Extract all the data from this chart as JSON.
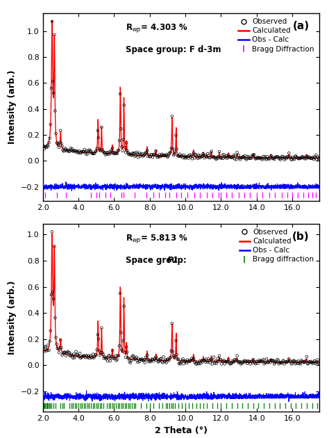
{
  "panel_a": {
    "rwp": "R",
    "rwp_sub": "wp",
    "rwp_val": "= 4.303 %",
    "space_group": "Space group: F d-3m",
    "space_group_italic": false,
    "label": "(a)",
    "bragg_color": "#FF00FF",
    "bragg_label": "Bragg Diffraction",
    "bragg_positions": [
      2.15,
      2.8,
      3.3,
      4.7,
      5.0,
      5.15,
      5.5,
      5.8,
      6.4,
      6.55,
      7.15,
      7.8,
      8.2,
      8.5,
      8.85,
      9.1,
      9.5,
      9.75,
      10.1,
      10.5,
      10.8,
      11.2,
      11.5,
      11.85,
      12.0,
      12.3,
      12.6,
      13.0,
      13.3,
      13.6,
      14.0,
      14.3,
      14.7,
      15.0,
      15.4,
      15.7,
      16.0,
      16.3,
      16.6,
      16.9,
      17.1,
      17.3
    ]
  },
  "panel_b": {
    "rwp": "R",
    "rwp_sub": "wp",
    "rwp_val": "= 5.813 %",
    "space_group": "Space group: ",
    "space_group_italic": "P1",
    "label": "(b)",
    "bragg_color": "#008000",
    "bragg_label": "Bragg diffraction",
    "bragg_positions": [
      2.05,
      2.1,
      2.15,
      2.2,
      2.25,
      2.3,
      2.35,
      2.4,
      2.5,
      2.6,
      2.7,
      3.0,
      3.1,
      3.2,
      3.5,
      3.6,
      3.7,
      3.8,
      3.9,
      4.0,
      4.1,
      4.2,
      4.3,
      4.4,
      4.5,
      4.6,
      4.7,
      4.8,
      4.9,
      5.0,
      5.1,
      5.2,
      5.3,
      5.4,
      5.6,
      5.7,
      5.8,
      5.9,
      6.0,
      6.1,
      6.2,
      6.3,
      6.4,
      6.5,
      6.6,
      6.7,
      6.8,
      6.9,
      7.0,
      7.1,
      7.2,
      7.5,
      7.8,
      8.0,
      8.2,
      8.5,
      8.7,
      8.9,
      9.0,
      9.1,
      9.2,
      9.3,
      9.4,
      9.6,
      9.8,
      10.0,
      10.2,
      10.4,
      10.6,
      10.8,
      11.0,
      11.2,
      11.5,
      11.8,
      12.0,
      12.3,
      12.6,
      12.9,
      13.2,
      13.5,
      13.8,
      14.1,
      14.4,
      14.7,
      15.0,
      15.3,
      15.6,
      15.9,
      16.2,
      16.5,
      16.8,
      17.1,
      17.4
    ]
  },
  "xmin": 2.0,
  "xmax": 17.5,
  "xticks": [
    2,
    4,
    6,
    8,
    10,
    12,
    14,
    16
  ],
  "xticklabels": [
    "2.0",
    "4.0",
    "6.0",
    "8.0",
    "10.0",
    "12.0",
    "14.0",
    "16.0"
  ],
  "xlabel": "2 Theta (°)",
  "ylabel": "Intensity (arb.)",
  "obs_color": "black",
  "calc_color": "red",
  "diff_color": "blue",
  "legend_obs": "Observed",
  "legend_calc": "Calculated",
  "legend_diff": "Obs - Calc",
  "bg_color": "white"
}
